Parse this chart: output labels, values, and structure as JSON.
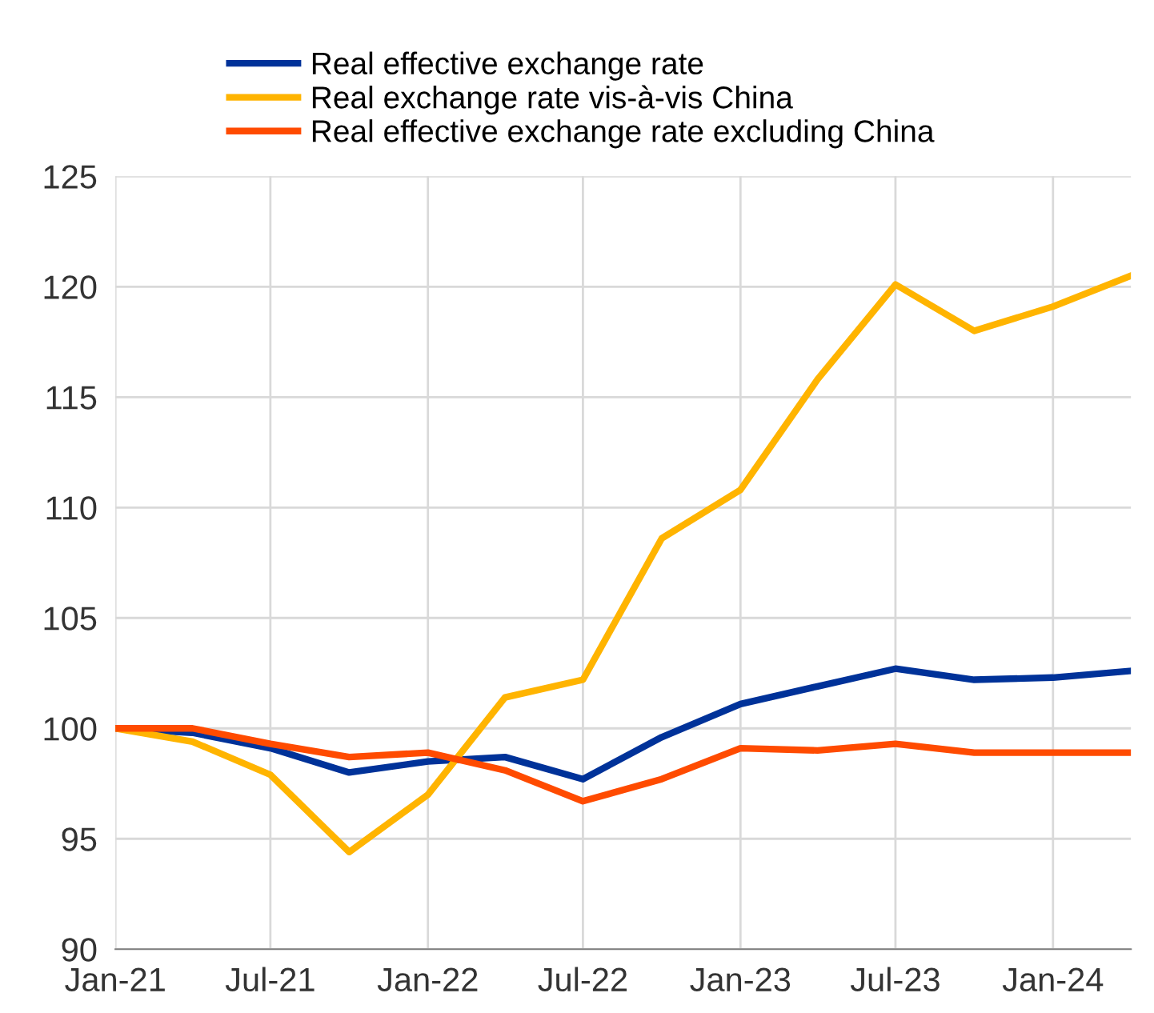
{
  "chart_data": {
    "type": "line",
    "x": [
      "2021-01",
      "2021-04",
      "2021-07",
      "2021-10",
      "2022-01",
      "2022-04",
      "2022-07",
      "2022-10",
      "2023-01",
      "2023-04",
      "2023-07",
      "2023-10",
      "2024-01",
      "2024-04"
    ],
    "series": [
      {
        "name": "Real effective exchange rate",
        "color": "#003299",
        "values": [
          100,
          99.8,
          99.1,
          98.0,
          98.5,
          98.7,
          97.7,
          99.6,
          101.1,
          101.9,
          102.7,
          102.2,
          102.3,
          102.6
        ]
      },
      {
        "name": "Real exchange rate vis-à-vis China",
        "color": "#ffb400",
        "values": [
          100,
          99.4,
          97.9,
          94.4,
          97.0,
          101.4,
          102.2,
          108.6,
          110.8,
          115.8,
          120.1,
          118.0,
          119.1,
          120.5
        ]
      },
      {
        "name": "Real effective exchange rate excluding China",
        "color": "#ff4b00",
        "values": [
          100,
          100.0,
          99.3,
          98.7,
          98.9,
          98.1,
          96.7,
          97.7,
          99.1,
          99.0,
          99.3,
          98.9,
          98.9,
          98.9
        ]
      }
    ],
    "xlim": [
      "2021-01",
      "2024-04"
    ],
    "xticks": [
      {
        "value": "2021-01",
        "label": "Jan-21"
      },
      {
        "value": "2021-07",
        "label": "Jul-21"
      },
      {
        "value": "2022-01",
        "label": "Jan-22"
      },
      {
        "value": "2022-07",
        "label": "Jul-22"
      },
      {
        "value": "2023-01",
        "label": "Jan-23"
      },
      {
        "value": "2023-07",
        "label": "Jul-23"
      },
      {
        "value": "2024-01",
        "label": "Jan-24"
      }
    ],
    "ylim": [
      90,
      125
    ],
    "yticks": [
      90,
      95,
      100,
      105,
      110,
      115,
      120,
      125
    ],
    "grid": true,
    "legend": "top",
    "marker": "none",
    "line_style": "solid"
  }
}
